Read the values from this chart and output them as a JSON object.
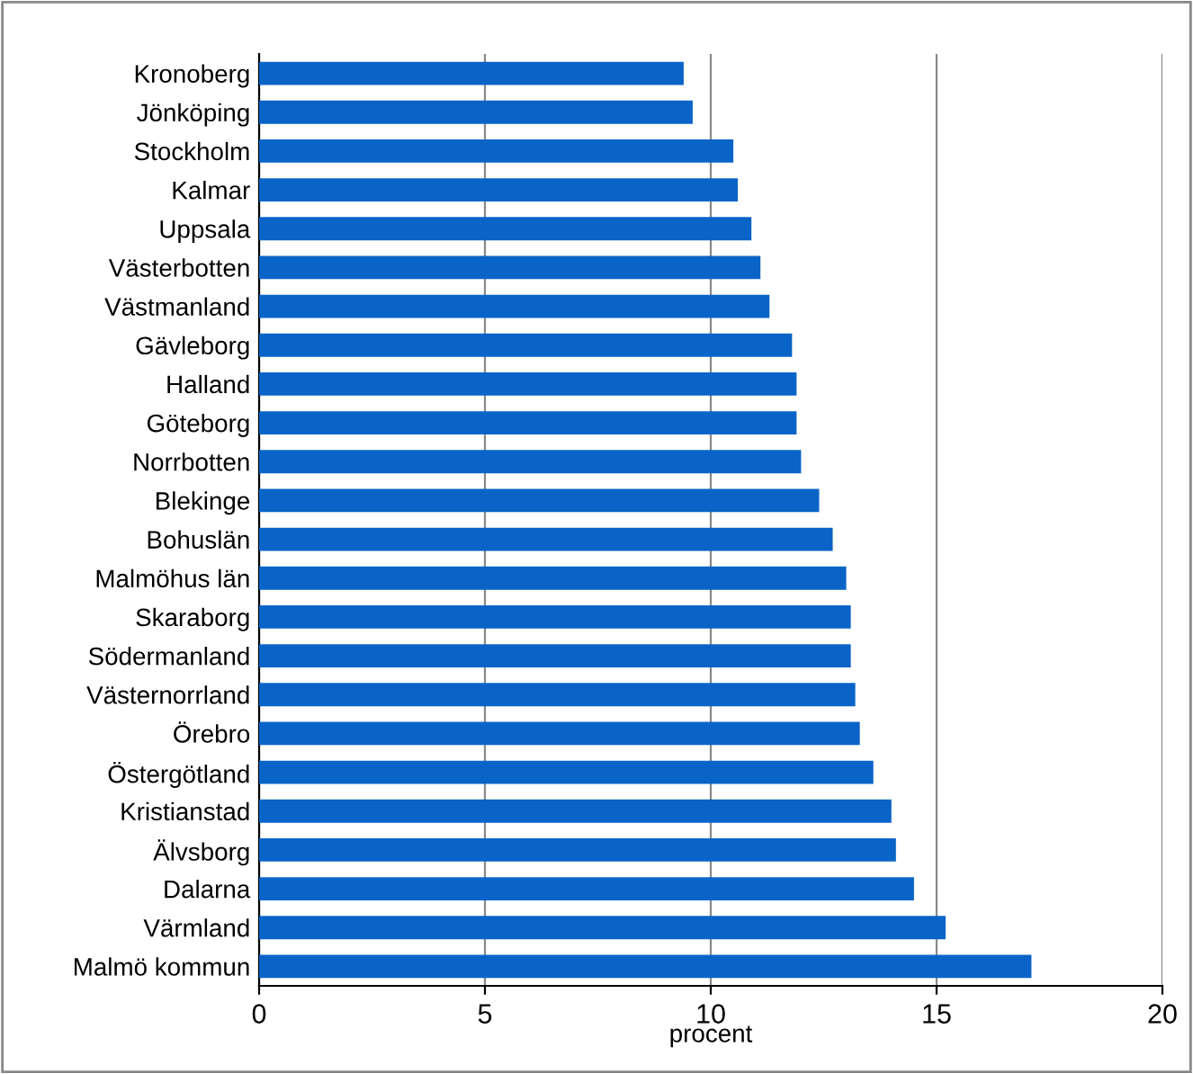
{
  "chart_data": {
    "type": "bar",
    "orientation": "horizontal",
    "xlabel": "procent",
    "categories": [
      "Kronoberg",
      "Jönköping",
      "Stockholm",
      "Kalmar",
      "Uppsala",
      "Västerbotten",
      "Västmanland",
      "Gävleborg",
      "Halland",
      "Göteborg",
      "Norrbotten",
      "Blekinge",
      "Bohuslän",
      "Malmöhus län",
      "Skaraborg",
      "Södermanland",
      "Västernorrland",
      "Örebro",
      "Östergötland",
      "Kristianstad",
      "Älvsborg",
      "Dalarna",
      "Värmland",
      "Malmö kommun"
    ],
    "values": [
      9.4,
      9.6,
      10.5,
      10.6,
      10.9,
      11.1,
      11.3,
      11.8,
      11.9,
      11.9,
      12.0,
      12.4,
      12.7,
      13.0,
      13.1,
      13.1,
      13.2,
      13.3,
      13.6,
      14.0,
      14.1,
      14.5,
      15.2,
      17.1
    ],
    "color": "#0a64c8",
    "xlim": [
      0,
      20
    ],
    "xticks": [
      0,
      5,
      10,
      15,
      20
    ],
    "grid": "x"
  }
}
